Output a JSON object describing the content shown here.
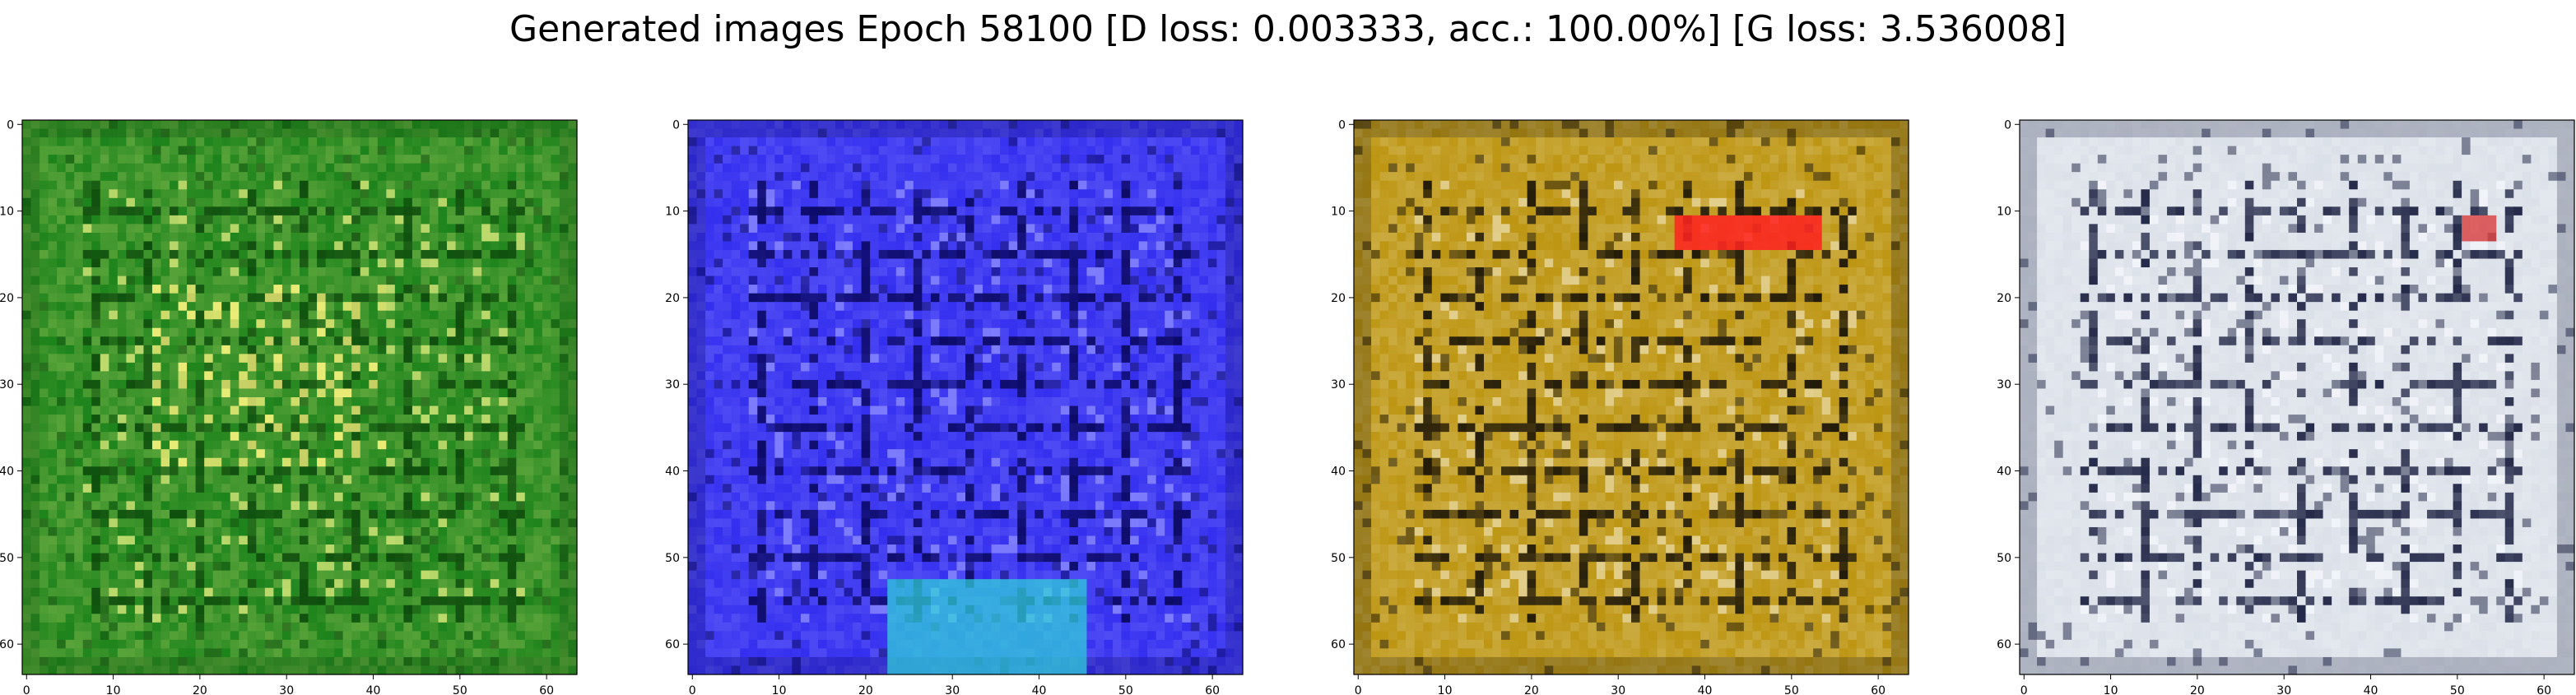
{
  "figure": {
    "title": "Generated images Epoch 58100 [D loss: 0.003333, acc.: 100.00%] [G loss: 3.536008]"
  },
  "chart_data": [
    {
      "type": "heatmap",
      "name": "generated-image-1",
      "palette": {
        "base": "#2a8a22",
        "dark": "#0d4a0c",
        "light": "#d8e87a",
        "accent": "#f5f07a"
      },
      "xlim": [
        -0.5,
        63.5
      ],
      "ylim": [
        63.5,
        -0.5
      ],
      "xticks": [
        0,
        10,
        20,
        30,
        40,
        50,
        60
      ],
      "yticks": [
        0,
        10,
        20,
        30,
        40,
        50,
        60
      ]
    },
    {
      "type": "heatmap",
      "name": "generated-image-2",
      "palette": {
        "base": "#3a35f0",
        "dark": "#0a0860",
        "light": "#8a8aff",
        "accent": "#30d8d8"
      },
      "xlim": [
        -0.5,
        63.5
      ],
      "ylim": [
        63.5,
        -0.5
      ],
      "xticks": [
        0,
        10,
        20,
        30,
        40,
        50,
        60
      ],
      "yticks": [
        0,
        10,
        20,
        30,
        40,
        50,
        60
      ]
    },
    {
      "type": "heatmap",
      "name": "generated-image-3",
      "palette": {
        "base": "#c09a1c",
        "dark": "#1a1408",
        "light": "#e8d8a0",
        "accent": "#ff2020"
      },
      "xlim": [
        -0.5,
        63.5
      ],
      "ylim": [
        63.5,
        -0.5
      ],
      "xticks": [
        0,
        10,
        20,
        30,
        40,
        50,
        60
      ],
      "yticks": [
        0,
        10,
        20,
        30,
        40,
        50,
        60
      ]
    },
    {
      "type": "heatmap",
      "name": "generated-image-4",
      "palette": {
        "base": "#dde2ea",
        "dark": "#1a2040",
        "light": "#f4f6fa",
        "accent": "#d83030"
      },
      "xlim": [
        -0.5,
        63.5
      ],
      "ylim": [
        63.5,
        -0.5
      ],
      "xticks": [
        0,
        10,
        20,
        30,
        40,
        50,
        60
      ],
      "yticks": [
        0,
        10,
        20,
        30,
        40,
        50,
        60
      ]
    }
  ]
}
